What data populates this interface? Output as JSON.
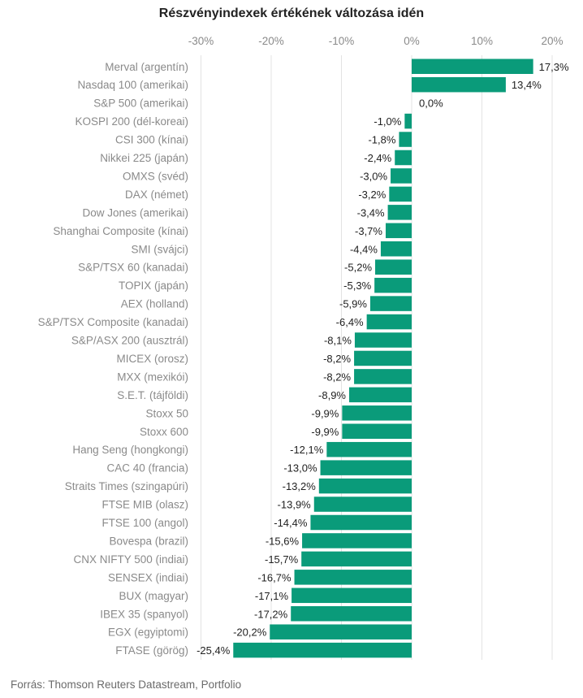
{
  "chart_data": {
    "type": "bar",
    "orientation": "horizontal",
    "title": "Részvényindexek értékének változása idén",
    "xlim": [
      -30,
      20
    ],
    "x_ticks": [
      -30,
      -20,
      -10,
      0,
      10,
      20
    ],
    "x_tick_labels": [
      "-30%",
      "-20%",
      "-10%",
      "0%",
      "10%",
      "20%"
    ],
    "x_tick_position": "top",
    "grid": true,
    "categories": [
      "Merval (argentín)",
      "Nasdaq 100 (amerikai)",
      "S&P 500 (amerikai)",
      "KOSPI 200 (dél-koreai)",
      "CSI 300 (kínai)",
      "Nikkei 225 (japán)",
      "OMXS (svéd)",
      "DAX (német)",
      "Dow Jones (amerikai)",
      "Shanghai Composite (kínai)",
      "SMI (svájci)",
      "S&P/TSX 60 (kanadai)",
      "TOPIX (japán)",
      "AEX (holland)",
      "S&P/TSX Composite (kanadai)",
      "S&P/ASX 200 (ausztrál)",
      "MICEX (orosz)",
      "MXX (mexikói)",
      "S.E.T. (tájföldi)",
      "Stoxx 50",
      "Stoxx 600",
      "Hang Seng (hongkongi)",
      "CAC 40 (francia)",
      "Straits Times (szingapúri)",
      "FTSE MIB (olasz)",
      "FTSE 100 (angol)",
      "Bovespa (brazil)",
      "CNX NIFTY 500 (indiai)",
      "SENSEX (indiai)",
      "BUX (magyar)",
      "IBEX 35 (spanyol)",
      "EGX (egyiptomi)",
      "FTASE (görög)"
    ],
    "values": [
      17.3,
      13.4,
      0.0,
      -1.0,
      -1.8,
      -2.4,
      -3.0,
      -3.2,
      -3.4,
      -3.7,
      -4.4,
      -5.2,
      -5.3,
      -5.9,
      -6.4,
      -8.1,
      -8.2,
      -8.2,
      -8.9,
      -9.9,
      -9.9,
      -12.1,
      -13.0,
      -13.2,
      -13.9,
      -14.4,
      -15.6,
      -15.7,
      -16.7,
      -17.1,
      -17.2,
      -20.2,
      -25.4
    ],
    "value_labels": [
      "17,3%",
      "13,4%",
      "0,0%",
      "-1,0%",
      "-1,8%",
      "-2,4%",
      "-3,0%",
      "-3,2%",
      "-3,4%",
      "-3,7%",
      "-4,4%",
      "-5,2%",
      "-5,3%",
      "-5,9%",
      "-6,4%",
      "-8,1%",
      "-8,2%",
      "-8,2%",
      "-8,9%",
      "-9,9%",
      "-9,9%",
      "-12,1%",
      "-13,0%",
      "-13,2%",
      "-13,9%",
      "-14,4%",
      "-15,6%",
      "-15,7%",
      "-16,7%",
      "-17,1%",
      "-17,2%",
      "-20,2%",
      "-25,4%"
    ],
    "bar_color": "#0a9b7a"
  },
  "source": "Forrás: Thomson Reuters Datastream, Portfolio"
}
